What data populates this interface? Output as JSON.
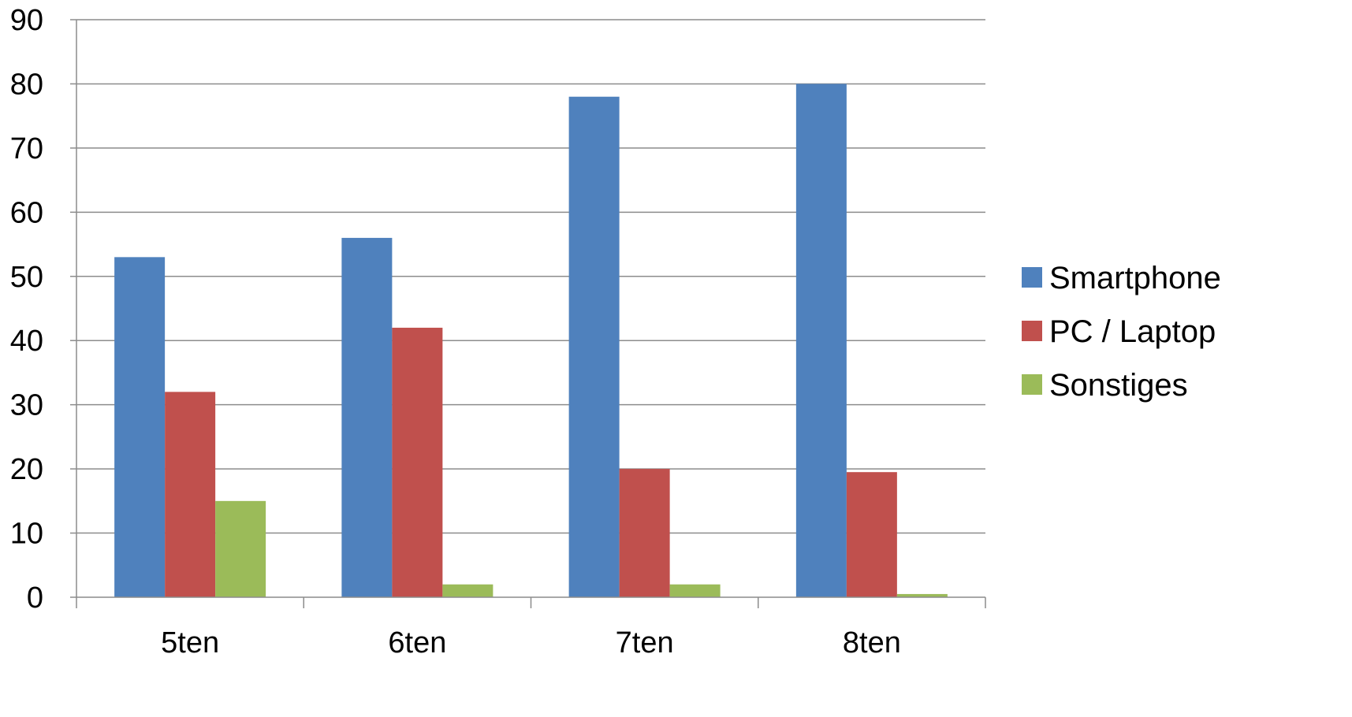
{
  "chart_data": {
    "type": "bar",
    "title": "",
    "xlabel": "",
    "ylabel": "",
    "categories": [
      "5ten",
      "6ten",
      "7ten",
      "8ten"
    ],
    "series": [
      {
        "name": "Smartphone",
        "values": [
          53,
          56,
          78,
          80
        ],
        "color": "#4F81BD"
      },
      {
        "name": "PC / Laptop",
        "values": [
          32,
          42,
          20,
          19.5
        ],
        "color": "#C0504D"
      },
      {
        "name": "Sonstiges",
        "values": [
          15,
          2,
          2,
          0.5
        ],
        "color": "#9BBB59"
      }
    ],
    "ylim": [
      0,
      90
    ],
    "yticks": [
      0,
      10,
      20,
      30,
      40,
      50,
      60,
      70,
      80,
      90
    ],
    "grid": true,
    "legend_position": "right"
  }
}
